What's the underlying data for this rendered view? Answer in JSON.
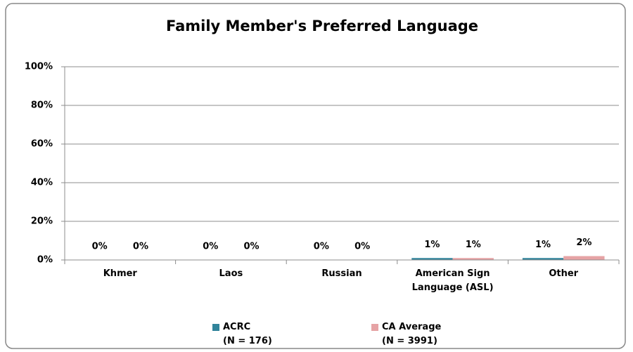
{
  "chart_data": {
    "type": "bar",
    "title": "Family Member's Preferred Language",
    "categories": [
      "Khmer",
      "Laos",
      "Russian",
      "American Sign\nLanguage (ASL)",
      "Other"
    ],
    "series": [
      {
        "name": "ACRC\n(N = 176)",
        "color": "#31849b",
        "values": [
          0,
          0,
          0,
          1,
          1
        ],
        "value_labels": [
          "0%",
          "0%",
          "0%",
          "1%",
          "1%"
        ]
      },
      {
        "name": "CA Average\n(N = 3991)",
        "color": "#e6a3a5",
        "values": [
          0,
          0,
          0,
          1,
          2
        ],
        "value_labels": [
          "0%",
          "0%",
          "0%",
          "1%",
          "2%"
        ]
      }
    ],
    "ylim": [
      0,
      100
    ],
    "yticks": [
      {
        "value": 0,
        "label": "0%"
      },
      {
        "value": 20,
        "label": "20%"
      },
      {
        "value": 40,
        "label": "40%"
      },
      {
        "value": 60,
        "label": "60%"
      },
      {
        "value": 80,
        "label": "80%"
      },
      {
        "value": 100,
        "label": "100%"
      }
    ],
    "grid": true,
    "legend": "bottom"
  }
}
